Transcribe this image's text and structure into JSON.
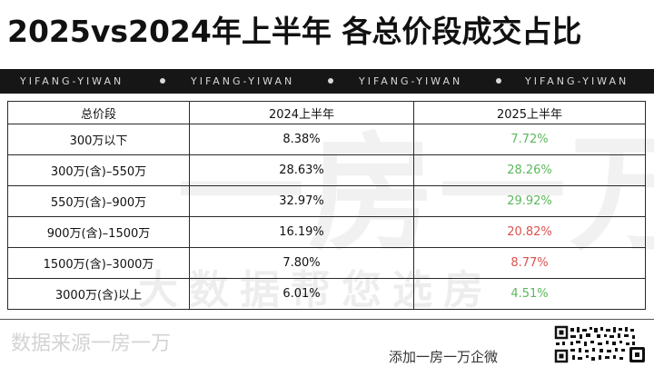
{
  "title": "2025vs2024年上半年 各总价段成交占比",
  "banner": {
    "items": [
      "YIFANG-YIWAN",
      "YIFANG-YIWAN",
      "YIFANG-YIWAN",
      "YIFANG-YIWAN"
    ]
  },
  "watermark": {
    "big": "一房一万",
    "small": "大数据帮您选房"
  },
  "table": {
    "headers": [
      "总价段",
      "2024上半年",
      "2025上半年"
    ],
    "rows": [
      {
        "segment": "300万以下",
        "y2024": "8.38%",
        "y2025": "7.72%",
        "trend": "down"
      },
      {
        "segment": "300万(含)–550万",
        "y2024": "28.63%",
        "y2025": "28.26%",
        "trend": "down"
      },
      {
        "segment": "550万(含)–900万",
        "y2024": "32.97%",
        "y2025": "29.92%",
        "trend": "down"
      },
      {
        "segment": "900万(含)–1500万",
        "y2024": "16.19%",
        "y2025": "20.82%",
        "trend": "up"
      },
      {
        "segment": "1500万(含)–3000万",
        "y2024": "7.80%",
        "y2025": "8.77%",
        "trend": "up"
      },
      {
        "segment": "3000万(含)以上",
        "y2024": "6.01%",
        "y2025": "4.51%",
        "trend": "down"
      }
    ]
  },
  "colors": {
    "down": "#5cb85c",
    "up": "#d9534f"
  },
  "footer": {
    "source": "数据来源一房一万",
    "wechat": "添加一房一万企微",
    "qr_icon": "qr-code-icon"
  }
}
